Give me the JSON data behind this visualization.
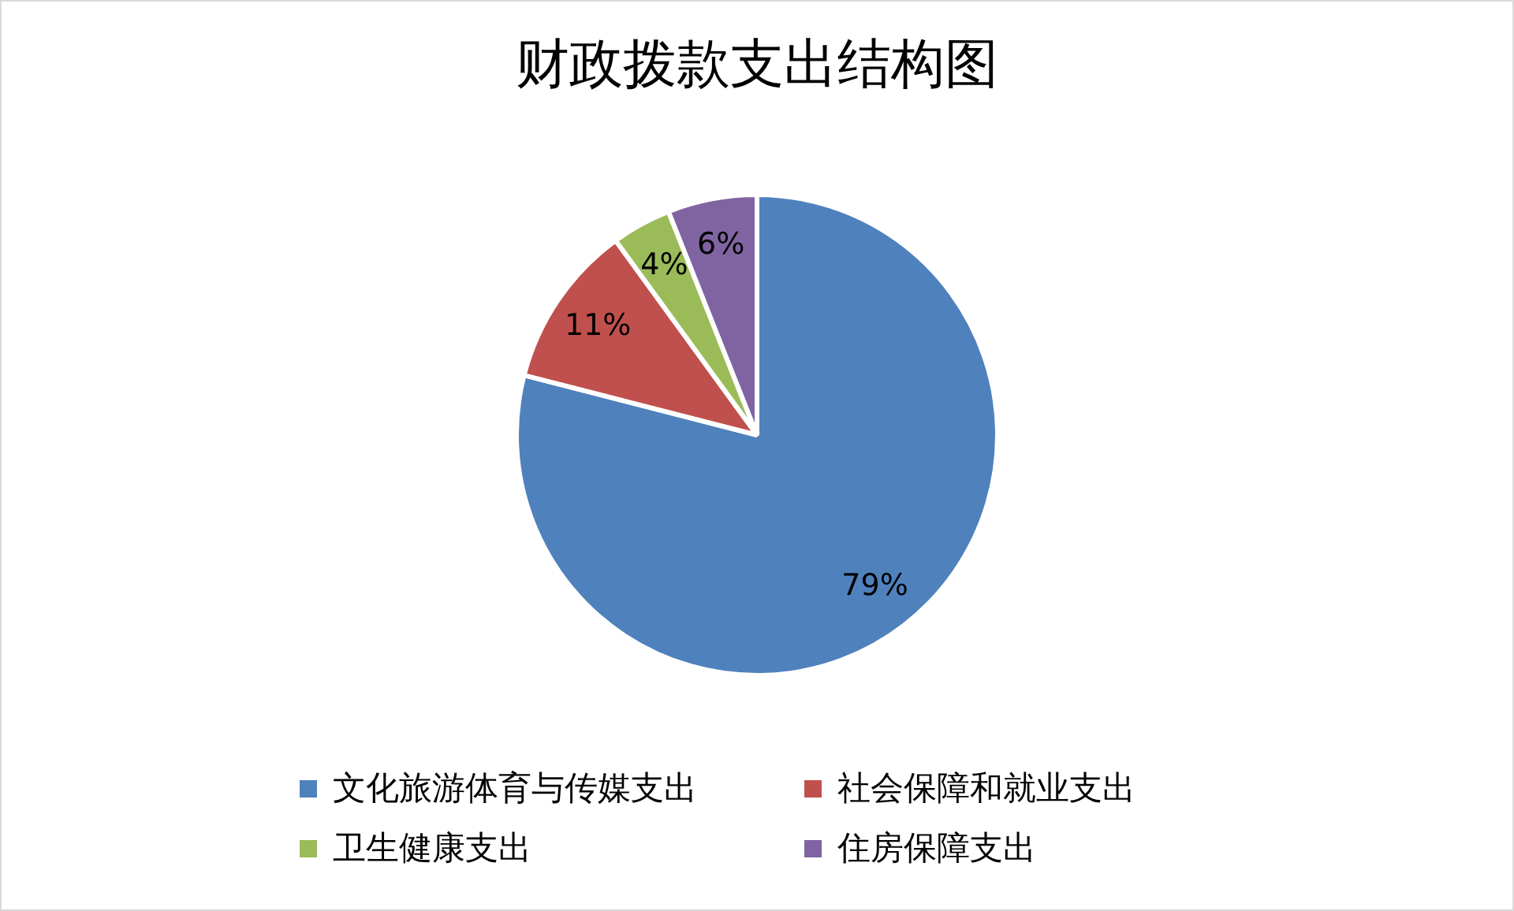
{
  "chart_data": {
    "type": "pie",
    "title": "财政拨款支出结构图",
    "categories": [
      "文化旅游体育与传媒支出",
      "社会保障和就业支出",
      "卫生健康支出",
      "住房保障支出"
    ],
    "values": [
      79,
      11,
      4,
      6
    ],
    "colors": [
      "#4f81bd",
      "#c0504d",
      "#9bbb59",
      "#8064a2"
    ],
    "value_labels": [
      "79%",
      "11%",
      "4%",
      "6%"
    ],
    "legend": "bottom"
  }
}
